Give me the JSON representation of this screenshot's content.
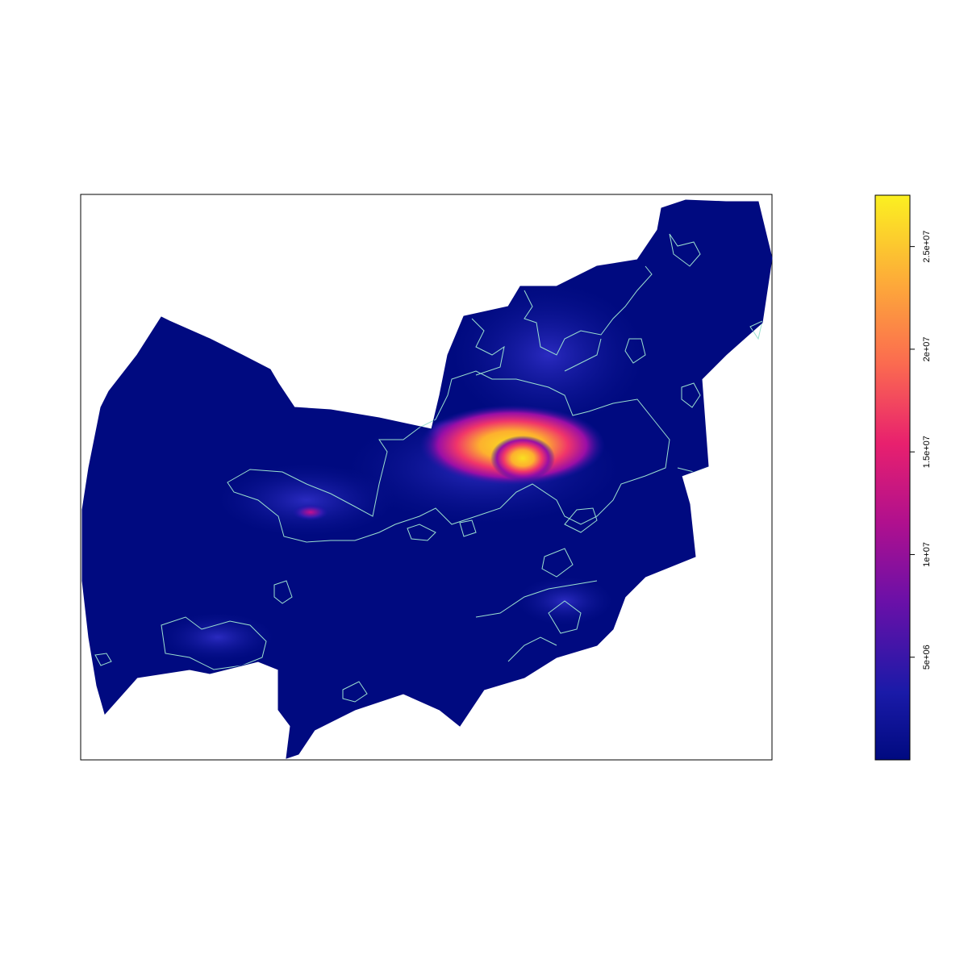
{
  "colorbar": {
    "ticks": [
      {
        "value": 5000000,
        "label": "5e+06"
      },
      {
        "value": 10000000,
        "label": "1e+07"
      },
      {
        "value": 15000000,
        "label": "1.5e+07"
      },
      {
        "value": 20000000,
        "label": "2e+07"
      },
      {
        "value": 25000000,
        "label": "2.5e+07"
      }
    ],
    "min": 0,
    "max": 27500000,
    "colors": [
      "#0d0887",
      "#2a1bb0",
      "#7a0ea6",
      "#c40f8e",
      "#f0356a",
      "#fb7a4a",
      "#fdb12e",
      "#f9f021"
    ]
  },
  "colors": {
    "background": "#000a80",
    "contour": "#9be0d0",
    "frame": "#000000"
  }
}
